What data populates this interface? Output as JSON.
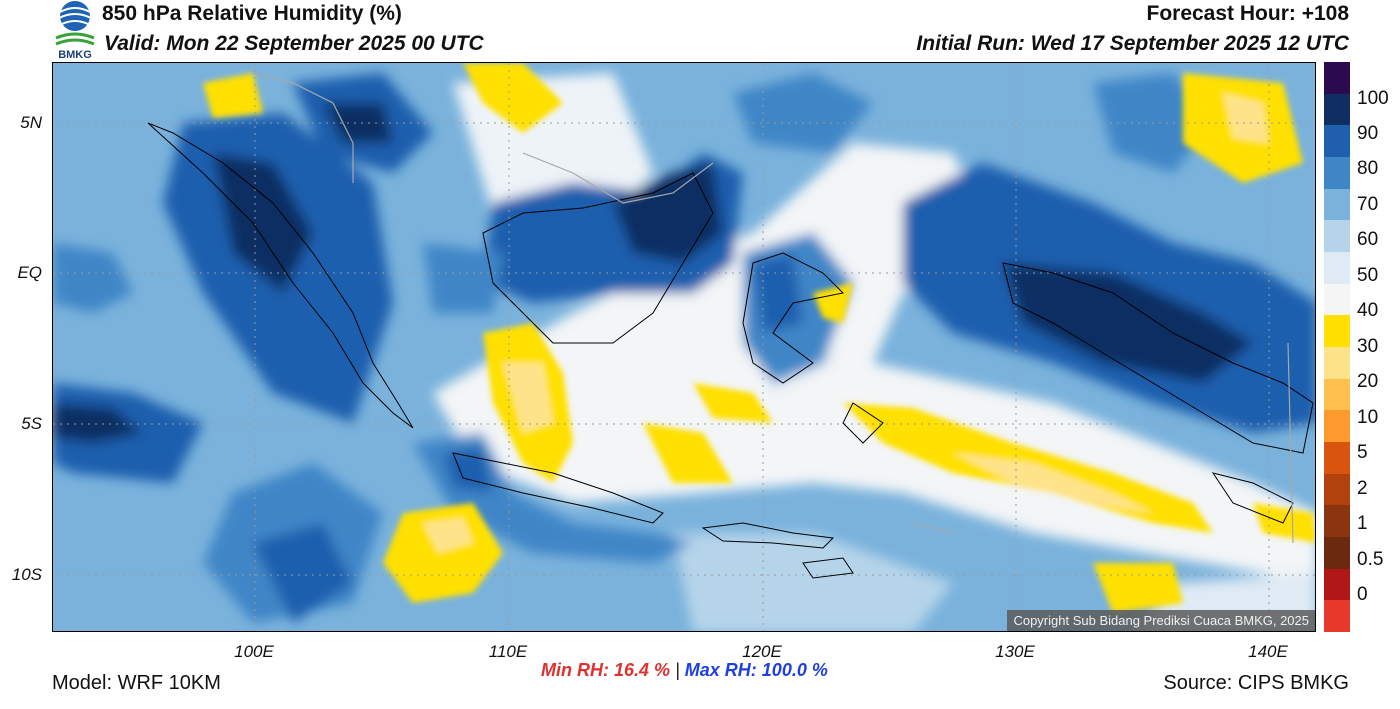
{
  "header": {
    "title": "850 hPa Relative Humidity (%)",
    "valid": "Valid: Mon 22 September 2025 00 UTC",
    "forecast_hour": "Forecast Hour: +108",
    "initial_run": "Initial Run: Wed 17 September 2025 12 UTC",
    "logo_text": "BMKG"
  },
  "map": {
    "lat_labels": [
      "5N",
      "EQ",
      "5S",
      "10S"
    ],
    "lon_labels": [
      "100E",
      "110E",
      "120E",
      "130E",
      "140E"
    ],
    "copyright": "Copyright Sub Bidang Prediksi Cuaca BMKG, 2025"
  },
  "colorbar": {
    "labels": [
      "100",
      "90",
      "80",
      "70",
      "60",
      "50",
      "40",
      "30",
      "20",
      "10",
      "5",
      "2",
      "1",
      "0.5",
      "0"
    ],
    "colors": [
      "#2b0a4e",
      "#0f2f63",
      "#1f5fae",
      "#3f86c7",
      "#7ab2dc",
      "#b5d4ea",
      "#dfeaf4",
      "#f5f5f5",
      "#ffe000",
      "#ffe38a",
      "#ffc04d",
      "#ff9a2e",
      "#d9550f",
      "#b2420d",
      "#8a3510",
      "#6b2a10",
      "#b21717",
      "#e6392b"
    ]
  },
  "stats": {
    "min_label": "Min RH:",
    "min_value": "16.4 %",
    "separator": "|",
    "max_label": "Max RH:",
    "max_value": "100.0 %"
  },
  "footer": {
    "model": "Model: WRF 10KM",
    "source": "Source: CIPS BMKG"
  }
}
